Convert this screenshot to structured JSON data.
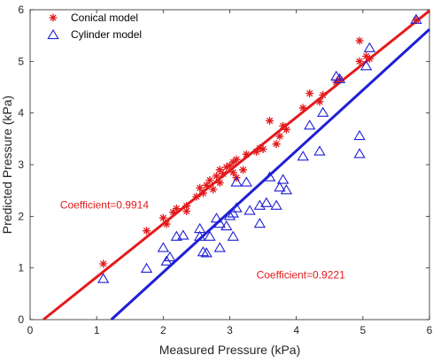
{
  "chart_data": {
    "type": "scatter",
    "xlabel": "Measured Pressure (kPa)",
    "ylabel": "Predicted Pressure (kPa)",
    "xlim": [
      0,
      6
    ],
    "ylim": [
      0,
      6
    ],
    "xticks": [
      0,
      1,
      2,
      3,
      4,
      5,
      6
    ],
    "yticks": [
      0,
      1,
      2,
      3,
      4,
      5,
      6
    ],
    "grid": false,
    "legend_position": "top-left",
    "series": [
      {
        "name": "Conical model",
        "marker": "asterisk",
        "color": "#e31a1c",
        "points": [
          [
            1.1,
            1.08
          ],
          [
            1.75,
            1.72
          ],
          [
            2.0,
            1.97
          ],
          [
            2.05,
            1.85
          ],
          [
            2.15,
            2.08
          ],
          [
            2.2,
            2.15
          ],
          [
            2.35,
            2.2
          ],
          [
            2.35,
            2.1
          ],
          [
            2.5,
            2.38
          ],
          [
            2.55,
            2.55
          ],
          [
            2.6,
            2.45
          ],
          [
            2.65,
            2.6
          ],
          [
            2.7,
            2.7
          ],
          [
            2.75,
            2.52
          ],
          [
            2.8,
            2.78
          ],
          [
            2.85,
            2.65
          ],
          [
            2.85,
            2.9
          ],
          [
            2.9,
            2.82
          ],
          [
            2.95,
            2.95
          ],
          [
            3.0,
            2.98
          ],
          [
            3.05,
            3.05
          ],
          [
            3.05,
            2.85
          ],
          [
            3.1,
            3.1
          ],
          [
            3.1,
            2.75
          ],
          [
            3.2,
            2.9
          ],
          [
            3.25,
            3.2
          ],
          [
            3.4,
            3.25
          ],
          [
            3.45,
            3.32
          ],
          [
            3.5,
            3.3
          ],
          [
            3.6,
            3.85
          ],
          [
            3.7,
            3.4
          ],
          [
            3.75,
            3.55
          ],
          [
            3.8,
            3.75
          ],
          [
            3.85,
            3.68
          ],
          [
            4.1,
            4.1
          ],
          [
            4.2,
            4.38
          ],
          [
            4.35,
            4.22
          ],
          [
            4.4,
            4.35
          ],
          [
            4.6,
            4.6
          ],
          [
            4.65,
            4.65
          ],
          [
            4.95,
            5.0
          ],
          [
            4.95,
            5.4
          ],
          [
            5.05,
            5.1
          ],
          [
            5.1,
            5.05
          ],
          [
            5.8,
            5.8
          ]
        ]
      },
      {
        "name": "Cylinder model",
        "marker": "triangle",
        "color": "#1f1fd6",
        "points": [
          [
            1.1,
            0.78
          ],
          [
            1.75,
            0.98
          ],
          [
            2.0,
            1.38
          ],
          [
            2.05,
            1.12
          ],
          [
            2.1,
            1.2
          ],
          [
            2.2,
            1.6
          ],
          [
            2.3,
            1.62
          ],
          [
            2.55,
            1.6
          ],
          [
            2.55,
            1.75
          ],
          [
            2.6,
            1.3
          ],
          [
            2.65,
            1.28
          ],
          [
            2.7,
            1.6
          ],
          [
            2.8,
            1.95
          ],
          [
            2.85,
            1.85
          ],
          [
            2.85,
            1.38
          ],
          [
            2.95,
            1.8
          ],
          [
            3.0,
            2.0
          ],
          [
            3.05,
            2.05
          ],
          [
            3.05,
            1.6
          ],
          [
            3.1,
            2.15
          ],
          [
            3.1,
            2.65
          ],
          [
            3.25,
            2.65
          ],
          [
            3.3,
            2.1
          ],
          [
            3.45,
            1.85
          ],
          [
            3.45,
            2.2
          ],
          [
            3.55,
            2.25
          ],
          [
            3.6,
            2.75
          ],
          [
            3.7,
            2.2
          ],
          [
            3.75,
            2.55
          ],
          [
            3.8,
            2.7
          ],
          [
            3.85,
            2.5
          ],
          [
            4.1,
            3.15
          ],
          [
            4.2,
            3.75
          ],
          [
            4.35,
            3.25
          ],
          [
            4.4,
            4.0
          ],
          [
            4.6,
            4.7
          ],
          [
            4.65,
            4.65
          ],
          [
            4.95,
            3.55
          ],
          [
            4.95,
            3.2
          ],
          [
            5.05,
            4.9
          ],
          [
            5.1,
            5.25
          ],
          [
            5.8,
            5.8
          ]
        ]
      }
    ],
    "fit_lines": [
      {
        "name": "Conical fit",
        "color": "#e31a1c",
        "x": [
          0.2,
          6.0
        ],
        "y": [
          0.0,
          5.98
        ]
      },
      {
        "name": "Cylinder fit",
        "color": "#1f1fd6",
        "x": [
          1.22,
          6.0
        ],
        "y": [
          0.0,
          5.62
        ]
      }
    ],
    "annotations": [
      {
        "text": "Coefficient=0.9914",
        "color": "#e31a1c",
        "x": 0.45,
        "y": 2.15
      },
      {
        "text": "Coefficient=0.9221",
        "color": "#e31a1c",
        "x": 3.4,
        "y": 0.8
      }
    ]
  }
}
